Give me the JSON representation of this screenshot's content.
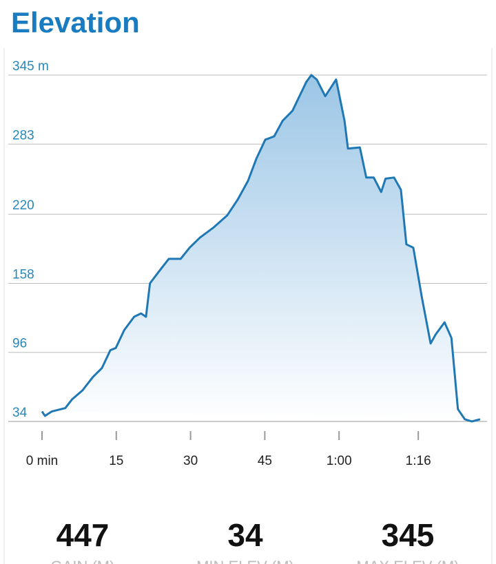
{
  "chart_data": {
    "type": "area",
    "title": "Elevation",
    "x": [
      0,
      0.6,
      2,
      4.7,
      6.1,
      8.2,
      10.3,
      12.1,
      13.8,
      14.9,
      16.6,
      18.6,
      20,
      21,
      21.8,
      23.5,
      25.6,
      28,
      29.8,
      31.9,
      34.6,
      37.4,
      39.5,
      41.6,
      43.3,
      45.1,
      46.9,
      48.6,
      50.6,
      52,
      53.4,
      54.4,
      55.5,
      57.2,
      59.4,
      61.1,
      61.8,
      64.2,
      65.5,
      67,
      68.5,
      69.4,
      71.1,
      72.5,
      73.6,
      75,
      76.7,
      78.5,
      79.5,
      81.3,
      82.7,
      84,
      85.4,
      86.8,
      88.5
    ],
    "values": [
      43,
      39,
      43,
      46,
      54,
      62,
      74,
      82,
      98,
      100,
      116,
      128,
      131,
      128,
      158,
      168,
      180,
      180,
      190,
      199,
      208,
      219,
      233,
      250,
      270,
      287,
      290,
      304,
      313,
      326,
      339,
      345,
      341,
      326,
      341,
      304,
      279,
      280,
      253,
      253,
      240,
      252,
      253,
      242,
      193,
      190,
      146,
      104,
      112,
      123,
      109,
      45,
      36,
      34,
      36
    ],
    "color": "#1f78b4",
    "xlim": [
      0,
      88.5
    ],
    "xticks": [
      {
        "value": 0,
        "label": "0 min"
      },
      15,
      30,
      45,
      {
        "value": 60,
        "label": "1:00"
      },
      {
        "value": 76,
        "label": "1:16"
      }
    ],
    "ylim": [
      34,
      345
    ],
    "yticks": [
      34,
      96,
      158,
      220,
      283,
      {
        "value": 345,
        "label": "345 m"
      }
    ],
    "grid": true
  },
  "stats": [
    {
      "value": "447",
      "label": "GAIN (M)"
    },
    {
      "value": "34",
      "label": "MIN ELEV (M)"
    },
    {
      "value": "345",
      "label": "MAX ELEV (M)"
    }
  ]
}
